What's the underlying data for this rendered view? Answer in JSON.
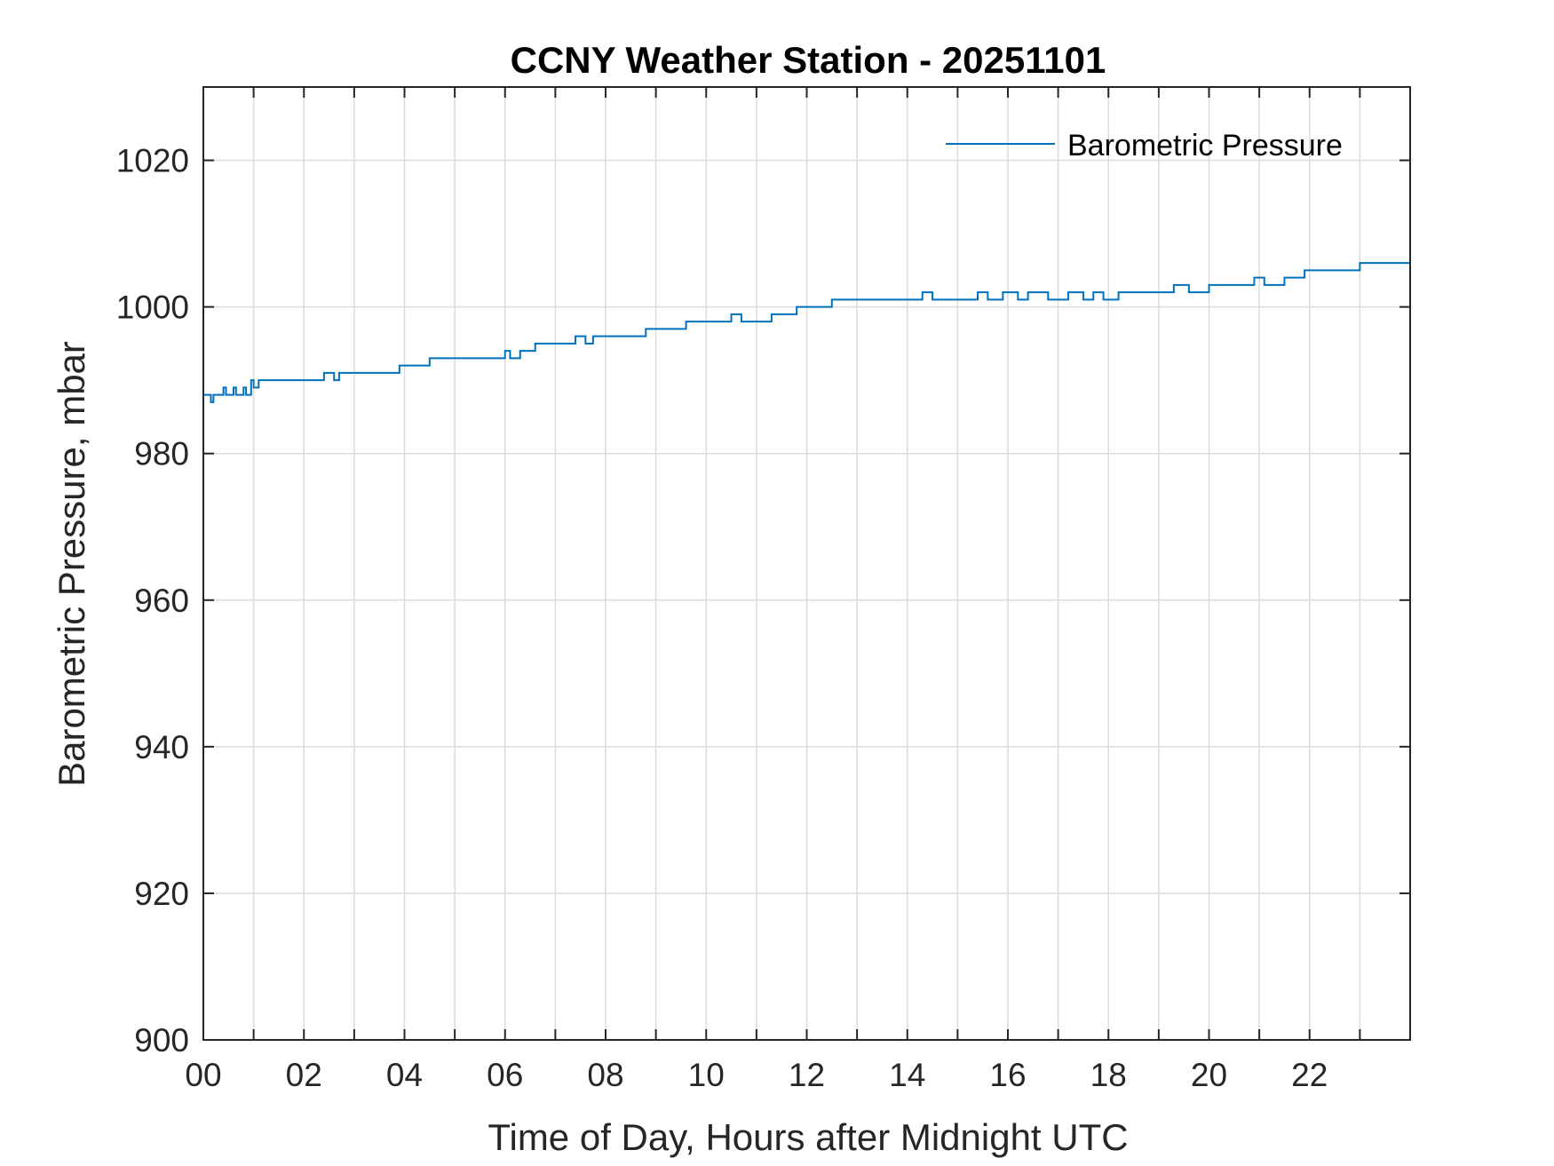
{
  "chart_data": {
    "type": "line",
    "title": "CCNY Weather Station - 20251101",
    "xlabel": "Time of Day, Hours after Midnight UTC",
    "ylabel": "Barometric Pressure, mbar",
    "xlim": [
      0,
      24
    ],
    "ylim": [
      900,
      1030
    ],
    "x_ticks": [
      0,
      2,
      4,
      6,
      8,
      10,
      12,
      14,
      16,
      18,
      20,
      22
    ],
    "x_tick_labels": [
      "00",
      "02",
      "04",
      "06",
      "08",
      "10",
      "12",
      "14",
      "16",
      "18",
      "20",
      "22"
    ],
    "y_ticks": [
      900,
      920,
      940,
      960,
      980,
      1000,
      1020
    ],
    "y_tick_labels": [
      "900",
      "920",
      "940",
      "960",
      "980",
      "1000",
      "1020"
    ],
    "grid": true,
    "legend_position": "top-right",
    "line_color": "#0072BD",
    "series": [
      {
        "name": "Barometric Pressure",
        "x": [
          0.0,
          0.15,
          0.2,
          0.25,
          0.4,
          0.45,
          0.6,
          0.65,
          0.8,
          0.85,
          0.95,
          1.0,
          1.1,
          1.3,
          2.3,
          2.4,
          2.6,
          2.7,
          2.8,
          3.5,
          3.9,
          4.0,
          4.3,
          4.5,
          5.0,
          5.8,
          6.0,
          6.1,
          6.3,
          6.4,
          6.6,
          6.8,
          7.4,
          7.6,
          7.75,
          7.9,
          8.1,
          8.8,
          9.0,
          9.6,
          10.0,
          10.5,
          10.7,
          11.3,
          11.8,
          12.0,
          12.5,
          13.0,
          14.0,
          14.3,
          14.5,
          15.0,
          15.4,
          15.6,
          15.9,
          16.2,
          16.4,
          16.8,
          17.2,
          17.5,
          17.7,
          17.9,
          18.2,
          18.5,
          19.3,
          19.6,
          20.0,
          20.9,
          21.1,
          21.5,
          21.9,
          22.3,
          23.0,
          23.5,
          24.0
        ],
        "y": [
          988,
          987,
          988,
          988,
          989,
          988,
          989,
          988,
          989,
          988,
          990,
          989,
          990,
          990,
          990,
          991,
          990,
          991,
          991,
          991,
          992,
          992,
          992,
          993,
          993,
          993,
          994,
          993,
          994,
          994,
          995,
          995,
          996,
          995,
          996,
          996,
          996,
          997,
          997,
          998,
          998,
          999,
          998,
          999,
          1000,
          1000,
          1001,
          1001,
          1001,
          1002,
          1001,
          1001,
          1002,
          1001,
          1002,
          1001,
          1002,
          1001,
          1002,
          1001,
          1002,
          1001,
          1002,
          1002,
          1003,
          1002,
          1003,
          1004,
          1003,
          1004,
          1005,
          1005,
          1006,
          1006,
          1006
        ]
      }
    ]
  }
}
